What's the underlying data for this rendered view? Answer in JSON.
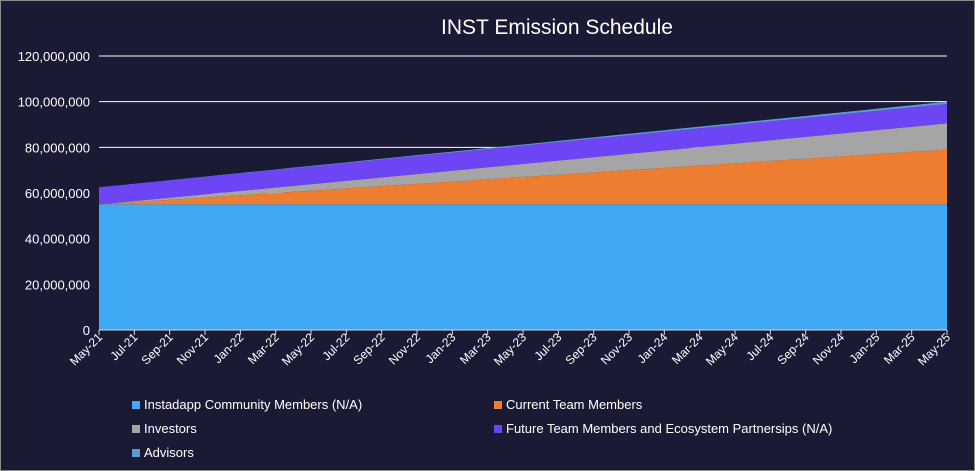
{
  "chart_data": {
    "type": "area",
    "stacked": true,
    "title": "INST Emission Schedule",
    "xlabel": "",
    "ylabel": "",
    "ylim": [
      0,
      120000000
    ],
    "yticks": [
      0,
      20000000,
      40000000,
      60000000,
      80000000,
      100000000,
      120000000
    ],
    "ytick_labels": [
      "0",
      "20,000,000",
      "40,000,000",
      "60,000,000",
      "80,000,000",
      "100,000,000",
      "120,000,000"
    ],
    "x": [
      "May-21",
      "Jun-21",
      "Jul-21",
      "Aug-21",
      "Sep-21",
      "Oct-21",
      "Nov-21",
      "Dec-21",
      "Jan-22",
      "Feb-22",
      "Mar-22",
      "Apr-22",
      "May-22",
      "Jun-22",
      "Jul-22",
      "Aug-22",
      "Sep-22",
      "Oct-22",
      "Nov-22",
      "Dec-22",
      "Jan-23",
      "Feb-23",
      "Mar-23",
      "Apr-23",
      "May-23",
      "Jun-23",
      "Jul-23",
      "Aug-23",
      "Sep-23",
      "Oct-23",
      "Nov-23",
      "Dec-23",
      "Jan-24",
      "Feb-24",
      "Mar-24",
      "Apr-24",
      "May-24",
      "Jun-24",
      "Jul-24",
      "Aug-24",
      "Sep-24",
      "Oct-24",
      "Nov-24",
      "Dec-24",
      "Jan-25",
      "Feb-25",
      "Mar-25",
      "Apr-25",
      "May-25"
    ],
    "xtick_labels": [
      "May-21",
      "Jul-21",
      "Sep-21",
      "Nov-21",
      "Jan-22",
      "Mar-22",
      "May-22",
      "Jul-22",
      "Sep-22",
      "Nov-22",
      "Jan-23",
      "Mar-23",
      "May-23",
      "Jul-23",
      "Sep-23",
      "Nov-23",
      "Jan-24",
      "Mar-24",
      "May-24",
      "Jul-24",
      "Sep-24",
      "Nov-24",
      "Jan-25",
      "Mar-25",
      "May-25"
    ],
    "grid": true,
    "legend_position": "bottom",
    "series": [
      {
        "name": "Instadapp Community Members (N/A)",
        "color": "#3fa9f5",
        "start": 55000000,
        "end": 55000000
      },
      {
        "name": "Current Team Members",
        "color": "#ed7d31",
        "start": 0,
        "end": 24000000
      },
      {
        "name": "Investors",
        "color": "#a5a5a5",
        "start": 0,
        "end": 11500000
      },
      {
        "name": "Future Team Members and Ecosystem Partnersips (N/A)",
        "color": "#6e45f5",
        "start": 7500000,
        "end": 8500000
      },
      {
        "name": "Advisors",
        "color": "#5b9bd5",
        "start": 0,
        "end": 1000000
      }
    ]
  }
}
